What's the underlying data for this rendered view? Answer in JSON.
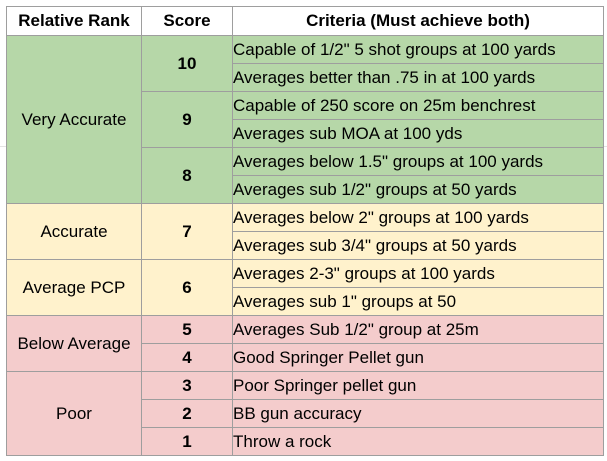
{
  "table": {
    "headers": {
      "rank": "Relative Rank",
      "score": "Score",
      "criteria": "Criteria (Must achieve both)"
    },
    "colors": {
      "very_accurate": "#b6d7a8",
      "accurate": "#fff2cc",
      "average_pcp": "#fff2cc",
      "below_average": "#f4cccc",
      "poor": "#f4cccc"
    },
    "tiers": [
      {
        "rank": "Very Accurate",
        "scores": [
          {
            "score": "10",
            "criteria": [
              "Capable of 1/2\" 5 shot groups at 100 yards",
              "Averages better than .75 in at 100 yards"
            ]
          },
          {
            "score": "9",
            "criteria": [
              "Capable of 250 score on 25m benchrest",
              "Averages sub MOA at 100 yds"
            ]
          },
          {
            "score": "8",
            "criteria": [
              "Averages below 1.5\" groups at 100 yards",
              "Averages sub 1/2\" groups at 50 yards"
            ]
          }
        ]
      },
      {
        "rank": "Accurate",
        "scores": [
          {
            "score": "7",
            "criteria": [
              "Averages below 2\" groups at 100 yards",
              "Averages sub 3/4\" groups at 50 yards"
            ]
          }
        ]
      },
      {
        "rank": "Average PCP",
        "scores": [
          {
            "score": "6",
            "criteria": [
              "Averages 2-3\" groups at 100 yards",
              "Averages sub 1\" groups at 50"
            ]
          }
        ]
      },
      {
        "rank": "Below Average",
        "scores": [
          {
            "score": "5",
            "criteria": [
              "Averages Sub 1/2\" group at 25m"
            ]
          },
          {
            "score": "4",
            "criteria": [
              "Good Springer Pellet gun"
            ]
          }
        ]
      },
      {
        "rank": "Poor",
        "scores": [
          {
            "score": "3",
            "criteria": [
              "Poor Springer pellet gun"
            ]
          },
          {
            "score": "2",
            "criteria": [
              "BB gun accuracy"
            ]
          },
          {
            "score": "1",
            "criteria": [
              "Throw a rock"
            ]
          }
        ]
      }
    ]
  }
}
